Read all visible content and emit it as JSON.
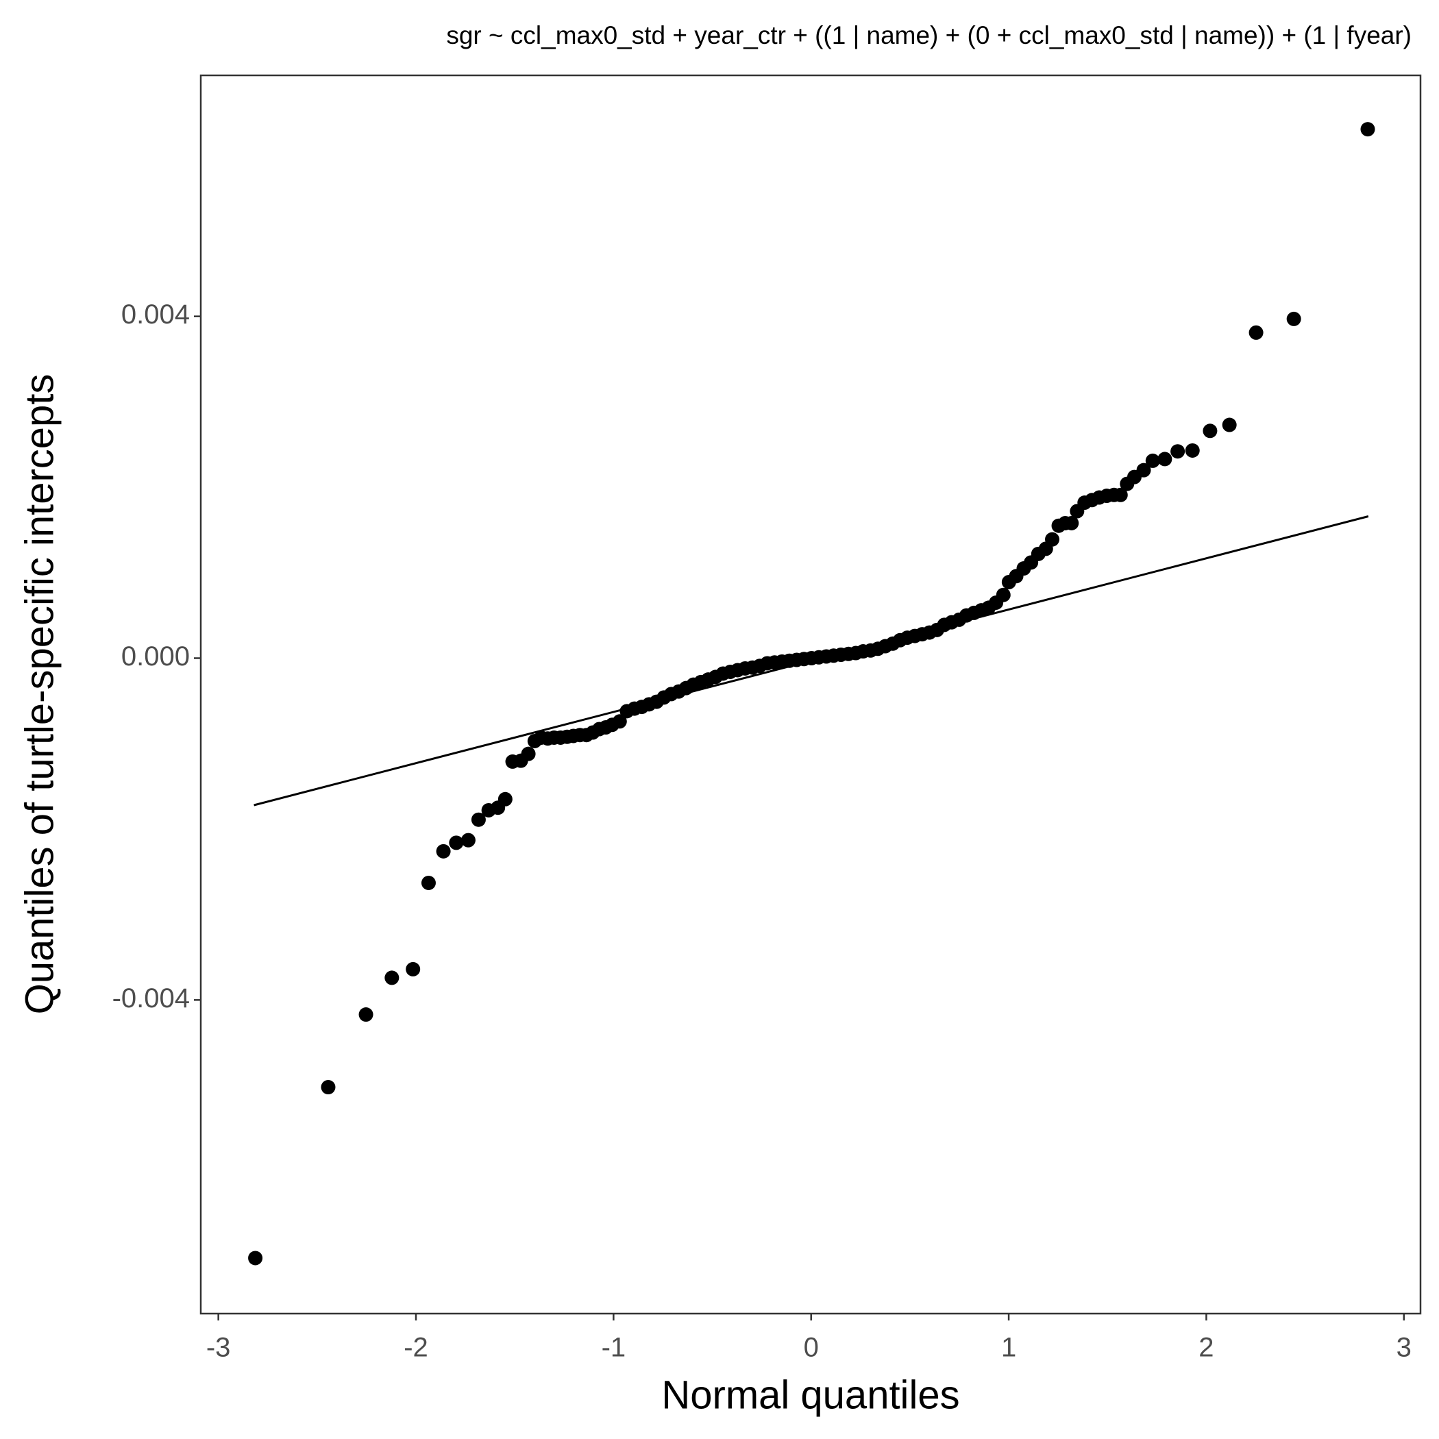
{
  "chart_data": {
    "type": "scatter",
    "title": "sgr ~ ccl_max0_std + year_ctr + ((1 | name) + (0 + ccl_max0_std | name)) + (1 | fyear)",
    "x_label": "Normal quantiles",
    "y_label": "Quantiles of turtle-specific intercepts",
    "xlim": [
      -3.089,
      3.084
    ],
    "ylim": [
      -0.00767,
      0.00682
    ],
    "xticks": [
      -3,
      -2,
      -1,
      0,
      1,
      2,
      3
    ],
    "yticks": [
      -0.004,
      {
        "value": 0,
        "label": "0.000"
      },
      0.004
    ],
    "color": "#000000",
    "qqline": {
      "x": [
        -2.82,
        2.82
      ],
      "y": [
        -0.00172,
        0.00166
      ]
    },
    "x": [
      -2.813,
      -2.444,
      -2.253,
      -2.122,
      -2.015,
      -1.936,
      -1.861,
      -1.796,
      -1.735,
      -1.683,
      -1.632,
      -1.585,
      -1.548,
      -1.511,
      -1.469,
      -1.431,
      -1.399,
      -1.366,
      -1.333,
      -1.301,
      -1.268,
      -1.235,
      -1.203,
      -1.17,
      -1.137,
      -1.105,
      -1.072,
      -1.039,
      -1.007,
      -0.969,
      -0.932,
      -0.894,
      -0.857,
      -0.82,
      -0.782,
      -0.745,
      -0.708,
      -0.67,
      -0.633,
      -0.596,
      -0.558,
      -0.521,
      -0.484,
      -0.446,
      -0.409,
      -0.372,
      -0.334,
      -0.297,
      -0.26,
      -0.222,
      -0.185,
      -0.148,
      -0.11,
      -0.073,
      -0.036,
      0.002,
      0.039,
      0.077,
      0.114,
      0.151,
      0.189,
      0.226,
      0.263,
      0.301,
      0.338,
      0.375,
      0.413,
      0.45,
      0.487,
      0.525,
      0.562,
      0.599,
      0.637,
      0.674,
      0.711,
      0.749,
      0.786,
      0.824,
      0.861,
      0.898,
      0.936,
      0.973,
      1.001,
      1.038,
      1.076,
      1.113,
      1.15,
      1.188,
      1.22,
      1.253,
      1.286,
      1.318,
      1.346,
      1.384,
      1.421,
      1.458,
      1.496,
      1.533,
      1.566,
      1.599,
      1.636,
      1.683,
      1.729,
      1.79,
      1.855,
      1.93,
      2.019,
      2.117,
      2.252,
      2.443,
      2.817
    ],
    "y": [
      -0.00702,
      -0.00502,
      -0.00417,
      -0.00374,
      -0.00364,
      -0.00263,
      -0.00226,
      -0.00216,
      -0.00213,
      -0.00189,
      -0.00178,
      -0.00175,
      -0.00165,
      -0.00121,
      -0.0012,
      -0.00112,
      -0.00097,
      -0.00093,
      -0.00094,
      -0.00093,
      -0.00093,
      -0.00092,
      -0.00091,
      -0.0009,
      -0.0009,
      -0.00087,
      -0.00083,
      -0.00081,
      -0.00078,
      -0.00074,
      -0.00062,
      -0.00059,
      -0.00057,
      -0.00054,
      -0.00051,
      -0.00046,
      -0.00042,
      -0.00039,
      -0.00035,
      -0.00031,
      -0.00028,
      -0.00025,
      -0.00022,
      -0.00018,
      -0.00016,
      -0.00014,
      -0.00012,
      -0.00011,
      -9e-05,
      -6e-05,
      -5e-05,
      -4e-05,
      -3e-05,
      -2e-05,
      -1e-05,
      0.0,
      1e-05,
      2e-05,
      3e-05,
      4e-05,
      5e-05,
      6e-05,
      8e-05,
      9e-05,
      0.00011,
      0.00014,
      0.00017,
      0.00021,
      0.00024,
      0.00026,
      0.00028,
      0.0003,
      0.00033,
      0.00039,
      0.00042,
      0.00045,
      0.0005,
      0.00053,
      0.00056,
      0.00059,
      0.00065,
      0.00074,
      0.00089,
      0.00096,
      0.00105,
      0.00112,
      0.00122,
      0.00128,
      0.00139,
      0.00155,
      0.00158,
      0.00158,
      0.00172,
      0.00182,
      0.00185,
      0.00188,
      0.0019,
      0.00191,
      0.00191,
      0.00204,
      0.00212,
      0.0022,
      0.00231,
      0.00233,
      0.00242,
      0.00243,
      0.00266,
      0.00273,
      0.00381,
      0.00397,
      0.00619
    ]
  }
}
